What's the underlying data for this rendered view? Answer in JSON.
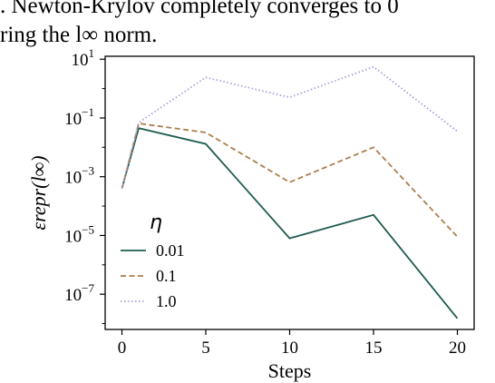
{
  "context_text": {
    "line1": ". Newton-Krylov completely converges to 0",
    "line2": "ring the l∞ norm."
  },
  "chart_data": {
    "type": "line",
    "xlabel": "Steps",
    "ylabel": "εrepr(l∞)",
    "yscale": "log",
    "xlim": [
      -1,
      21
    ],
    "ylim_exp": [
      -8.2,
      1.1
    ],
    "x_ticks": [
      0,
      5,
      10,
      15,
      20
    ],
    "y_ticks": [
      {
        "base": "10",
        "exp": "1",
        "value": 10
      },
      {
        "base": "10",
        "exp": "−1",
        "value": 0.1
      },
      {
        "base": "10",
        "exp": "−3",
        "value": 0.001
      },
      {
        "base": "10",
        "exp": "−5",
        "value": 1e-05
      },
      {
        "base": "10",
        "exp": "−7",
        "value": 1e-07
      }
    ],
    "grid": false,
    "legend": {
      "title": "η",
      "position": "lower-left"
    },
    "x": [
      0,
      1,
      5,
      10,
      15,
      20
    ],
    "series": [
      {
        "name": "0.01",
        "color": "#1e5b50",
        "dash": "solid",
        "values": [
          0.0004,
          0.045,
          0.013,
          8e-06,
          5e-05,
          1.5e-08
        ]
      },
      {
        "name": "0.1",
        "color": "#ad7e4d",
        "dash": "dashed",
        "values": [
          0.0004,
          0.065,
          0.032,
          0.00065,
          0.01,
          9e-06
        ]
      },
      {
        "name": "1.0",
        "color": "#a8a0dc",
        "dash": "dotted",
        "values": [
          0.0004,
          0.07,
          2.4,
          0.5,
          5.5,
          0.035
        ]
      }
    ]
  }
}
